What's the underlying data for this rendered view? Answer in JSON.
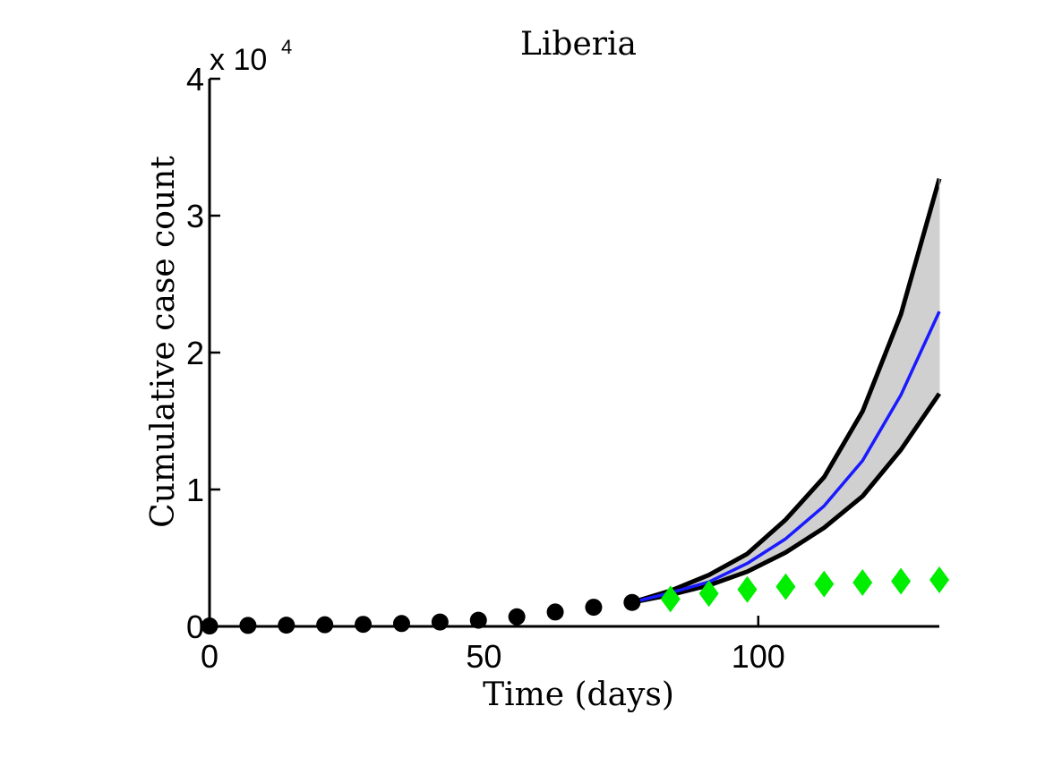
{
  "chart_data": {
    "type": "line",
    "title": "Liberia",
    "xlabel": "Time (days)",
    "ylabel": "Cumulative case count",
    "y_exponent_label": "x 10",
    "y_exponent": "4",
    "xlim": [
      0,
      133
    ],
    "ylim": [
      0,
      40000
    ],
    "xticks": [
      0,
      50,
      100
    ],
    "xtick_labels": [
      "0",
      "50",
      "100"
    ],
    "yticks": [
      0,
      10000,
      20000,
      30000,
      40000
    ],
    "ytick_labels": [
      "0",
      "1",
      "2",
      "3",
      "4"
    ],
    "grid": false,
    "legend": "none",
    "colors": {
      "observed": "#000000",
      "mean": "#1a1aff",
      "bounds": "#000000",
      "band": "#d0d0d0",
      "actual": "#00ee00"
    },
    "observed_points": {
      "x": [
        0,
        7,
        14,
        21,
        28,
        35,
        42,
        49,
        56,
        63,
        70,
        77
      ],
      "y": [
        30,
        70,
        90,
        120,
        150,
        210,
        320,
        450,
        700,
        1050,
        1400,
        1750
      ]
    },
    "forecast_x": [
      77,
      84,
      91,
      98,
      105,
      112,
      119,
      126,
      133
    ],
    "forecast_mean": [
      1750,
      2450,
      3250,
      4600,
      6400,
      8800,
      12100,
      16900,
      23000
    ],
    "forecast_upper": [
      1750,
      2600,
      3750,
      5300,
      7800,
      10900,
      15700,
      22800,
      32700
    ],
    "forecast_lower": [
      1750,
      2300,
      3000,
      4000,
      5400,
      7200,
      9500,
      12900,
      17000
    ],
    "actual_points": {
      "x": [
        84,
        91,
        98,
        105,
        112,
        119,
        126,
        133
      ],
      "y": [
        2000,
        2400,
        2700,
        2900,
        3100,
        3200,
        3300,
        3400
      ]
    }
  }
}
